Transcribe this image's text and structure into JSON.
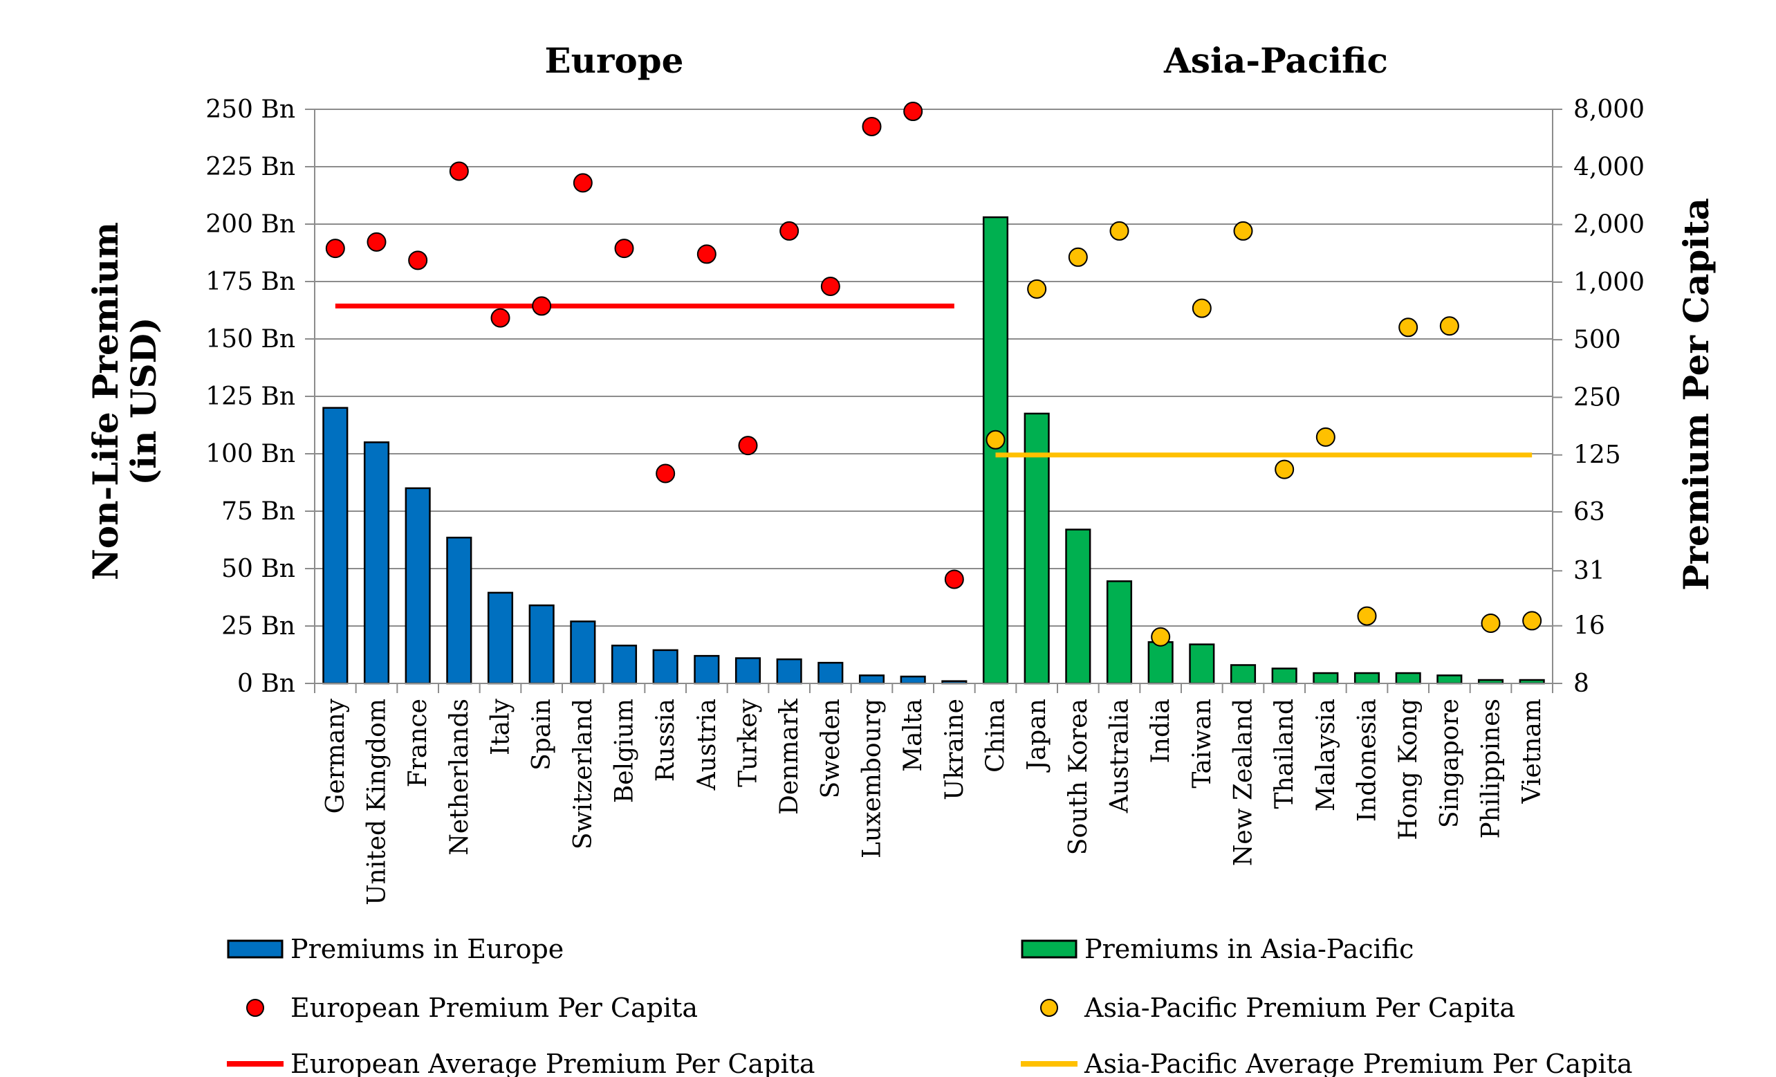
{
  "chart_data": {
    "type": "bar",
    "group_titles": [
      "Europe",
      "Asia-Pacific"
    ],
    "y_left": {
      "label_lines": [
        "Non-Life Premium",
        "(in USD)"
      ],
      "range": [
        0,
        250
      ],
      "ticks": [
        0,
        25,
        50,
        75,
        100,
        125,
        150,
        175,
        200,
        225,
        250
      ],
      "tick_labels": [
        "0 Bn",
        "25 Bn",
        "50 Bn",
        "75 Bn",
        "100 Bn",
        "125 Bn",
        "150 Bn",
        "175 Bn",
        "200 Bn",
        "225 Bn",
        "250 Bn"
      ]
    },
    "y_right": {
      "label": "Premium Per Capita",
      "scale": "log2",
      "range": [
        8,
        8000
      ],
      "ticks": [
        8,
        16,
        31,
        63,
        125,
        250,
        500,
        1000,
        2000,
        4000,
        8000
      ],
      "tick_labels": [
        "8",
        "16",
        "31",
        "63",
        "125",
        "250",
        "500",
        "1,000",
        "2,000",
        "4,000",
        "8,000"
      ]
    },
    "grid": true,
    "legend_position": "bottom",
    "europe": {
      "categories": [
        "Germany",
        "United Kingdom",
        "France",
        "Netherlands",
        "Italy",
        "Spain",
        "Switzerland",
        "Belgium",
        "Russia",
        "Austria",
        "Turkey",
        "Denmark",
        "Sweden",
        "Luxembourg",
        "Malta",
        "Ukraine"
      ],
      "premiums_bn": [
        120,
        105,
        85,
        63.5,
        39.5,
        34,
        27,
        16.5,
        14.5,
        12,
        11,
        10.5,
        9,
        3.5,
        3,
        1
      ],
      "per_capita": [
        1500,
        1620,
        1300,
        3800,
        650,
        750,
        3300,
        1500,
        100,
        1400,
        140,
        1850,
        950,
        6500,
        7800,
        28
      ],
      "average_per_capita": 750,
      "bar_color": "#0070C0",
      "dot_color": "#FF0000",
      "avg_color": "#FF0000"
    },
    "asia_pacific": {
      "categories": [
        "China",
        "Japan",
        "South Korea",
        "Australia",
        "India",
        "Taiwan",
        "New Zealand",
        "Thailand",
        "Malaysia",
        "Indonesia",
        "Hong Kong",
        "Singapore",
        "Philippines",
        "Vietnam"
      ],
      "premiums_bn": [
        203,
        117.5,
        67,
        44.5,
        18,
        17,
        8,
        6.5,
        4.5,
        4.5,
        4.5,
        3.5,
        1.5,
        1.5
      ],
      "per_capita": [
        150,
        920,
        1350,
        1850,
        14,
        730,
        1850,
        105,
        155,
        18,
        580,
        590,
        16.5,
        17
      ],
      "average_per_capita": 125,
      "bar_color": "#00B050",
      "dot_color": "#FFC000",
      "avg_color": "#FFC000"
    },
    "legend": [
      {
        "label": "Premiums in Europe",
        "kind": "bar",
        "color": "#0070C0"
      },
      {
        "label": "Premiums in Asia-Pacific",
        "kind": "bar",
        "color": "#00B050"
      },
      {
        "label": "European Premium Per Capita",
        "kind": "dot",
        "color": "#FF0000"
      },
      {
        "label": "Asia-Pacific Premium Per Capita",
        "kind": "dot",
        "color": "#FFC000"
      },
      {
        "label": "European Average Premium Per Capita",
        "kind": "line",
        "color": "#FF0000"
      },
      {
        "label": "Asia-Pacific Average Premium Per Capita",
        "kind": "line",
        "color": "#FFC000"
      }
    ]
  }
}
